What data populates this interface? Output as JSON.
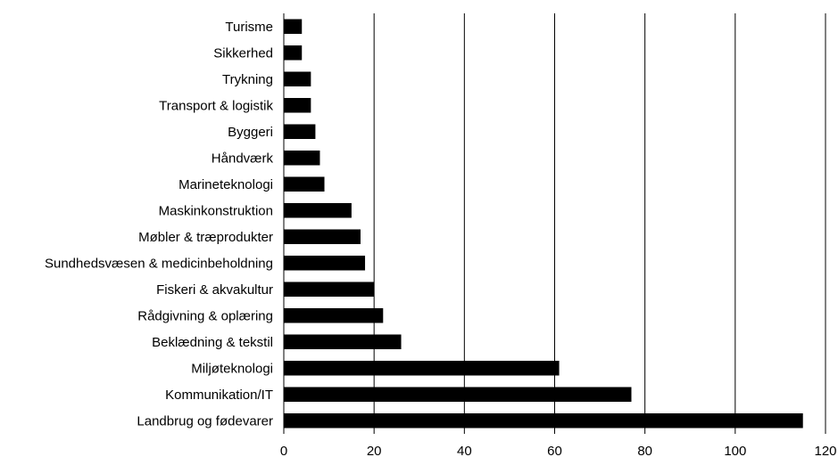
{
  "chart_data": {
    "type": "bar",
    "orientation": "horizontal",
    "categories": [
      "Turisme",
      "Sikkerhed",
      "Trykning",
      "Transport & logistik",
      "Byggeri",
      "Håndværk",
      "Marineteknologi",
      "Maskinkonstruktion",
      "Møbler & træprodukter",
      "Sundhedsvæsen & medicinbeholdning",
      "Fiskeri & akvakultur",
      "Rådgivning & oplæring",
      "Beklædning & tekstil",
      "Miljøteknologi",
      "Kommunikation/IT",
      "Landbrug og fødevarer"
    ],
    "values": [
      4,
      4,
      6,
      6,
      7,
      8,
      9,
      15,
      17,
      18,
      20,
      22,
      26,
      61,
      77,
      115
    ],
    "xlim": [
      0,
      120
    ],
    "xticks": [
      "0",
      "20",
      "40",
      "60",
      "80",
      "100",
      "120"
    ],
    "title": "",
    "xlabel": "",
    "ylabel": "",
    "grid": "vertical",
    "legend": "none",
    "bar_color": "#000000",
    "grid_color": "#000000"
  }
}
